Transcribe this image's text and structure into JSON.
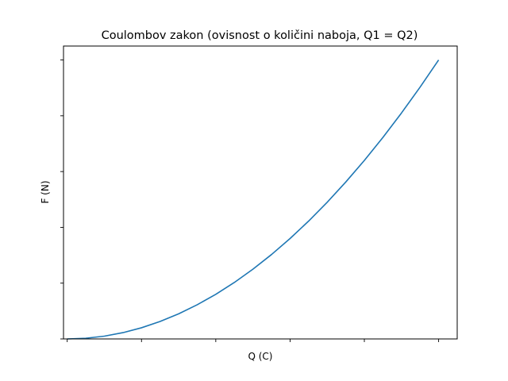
{
  "chart_data": {
    "type": "line",
    "title": "Coulombov zakon (ovisnost o količini naboja, Q1 = Q2)",
    "xlabel": "Q (C)",
    "ylabel": "F (N)",
    "x_tick_labels_visible": false,
    "y_tick_labels_visible": false,
    "x_tick_count": 6,
    "y_tick_count": 6,
    "grid": false,
    "legend": "none",
    "relationship": "F ∝ Q²",
    "series": [
      {
        "color": "#1f77b4",
        "x": [
          0,
          0.05,
          0.1,
          0.15,
          0.2,
          0.25,
          0.3,
          0.35,
          0.4,
          0.45,
          0.5,
          0.55,
          0.6,
          0.65,
          0.7,
          0.75,
          0.8,
          0.85,
          0.9,
          0.95,
          1.0
        ],
        "y": [
          0,
          0.0025,
          0.01,
          0.0225,
          0.04,
          0.0625,
          0.09,
          0.1225,
          0.16,
          0.2025,
          0.25,
          0.3025,
          0.36,
          0.4225,
          0.49,
          0.5625,
          0.64,
          0.7225,
          0.81,
          0.9025,
          1.0
        ]
      }
    ],
    "xlim": [
      -0.01,
      1.05
    ],
    "ylim": [
      0,
      1.05
    ]
  }
}
